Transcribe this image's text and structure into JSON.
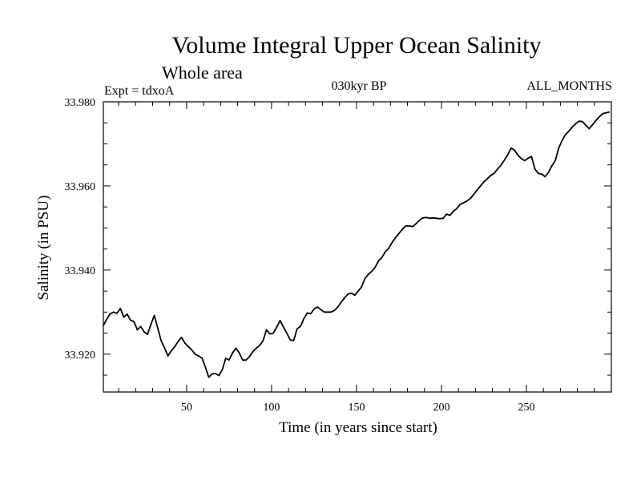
{
  "chart_data": {
    "type": "line",
    "title": "Volume Integral Upper Ocean Salinity",
    "subtitle": "Whole area",
    "annotations": {
      "left": "Expt = tdxoA",
      "center": "030kyr BP",
      "right": "ALL_MONTHS"
    },
    "xlabel": "Time (in years since start)",
    "ylabel": "Salinity (in PSU)",
    "xlim": [
      1,
      300
    ],
    "ylim": [
      33.911,
      33.98
    ],
    "x_ticks": [
      50,
      100,
      150,
      200,
      250
    ],
    "y_ticks": [
      33.92,
      33.94,
      33.96,
      33.98
    ],
    "y_tick_labels": [
      "33.920",
      "33.940",
      "33.960",
      "33.980"
    ],
    "grid": false,
    "series": [
      {
        "color": "#000000",
        "x": [
          1,
          3,
          5,
          7,
          9,
          11,
          13,
          15,
          17,
          19,
          21,
          23,
          25,
          27,
          29,
          31,
          33,
          35,
          37,
          39,
          41,
          43,
          45,
          47,
          49,
          51,
          53,
          55,
          57,
          59,
          61,
          63,
          65,
          67,
          69,
          71,
          73,
          75,
          77,
          79,
          81,
          83,
          85,
          87,
          89,
          91,
          93,
          95,
          97,
          99,
          101,
          103,
          105,
          107,
          109,
          111,
          113,
          115,
          117,
          119,
          121,
          123,
          125,
          127,
          129,
          131,
          133,
          135,
          137,
          139,
          141,
          143,
          145,
          147,
          149,
          151,
          153,
          155,
          157,
          159,
          161,
          163,
          165,
          167,
          169,
          171,
          173,
          175,
          177,
          179,
          181,
          183,
          185,
          187,
          189,
          191,
          193,
          195,
          197,
          199,
          201,
          203,
          205,
          207,
          209,
          211,
          213,
          215,
          217,
          219,
          221,
          223,
          225,
          227,
          229,
          231,
          233,
          235,
          237,
          239,
          241,
          243,
          245,
          247,
          249,
          251,
          253,
          255,
          257,
          259,
          261,
          263,
          265,
          267,
          269,
          271,
          273,
          275,
          277,
          279,
          281,
          283,
          285,
          287,
          289,
          291,
          293,
          295,
          297,
          299
        ],
        "y": [
          33.9268,
          33.9283,
          33.9296,
          33.93,
          33.9297,
          33.9309,
          33.9288,
          33.9295,
          33.9281,
          33.9277,
          33.9258,
          33.9266,
          33.9253,
          33.9247,
          33.9271,
          33.9292,
          33.9262,
          33.9232,
          33.9215,
          33.9196,
          33.9208,
          33.9218,
          33.923,
          33.924,
          33.9226,
          33.9218,
          33.921,
          33.92,
          33.9196,
          33.9191,
          33.917,
          33.9145,
          33.9153,
          33.9154,
          33.9149,
          33.9163,
          33.919,
          33.9186,
          33.9203,
          33.9214,
          33.9203,
          33.9186,
          33.9186,
          33.9194,
          33.9206,
          33.9214,
          33.9221,
          33.9232,
          33.9258,
          33.9248,
          33.925,
          33.9264,
          33.928,
          33.9264,
          33.925,
          33.9234,
          33.9232,
          33.926,
          33.9266,
          33.9284,
          33.9298,
          33.9296,
          33.9307,
          33.9312,
          33.9306,
          33.93,
          33.93,
          33.93,
          33.9304,
          33.9312,
          33.9324,
          33.9334,
          33.9343,
          33.9345,
          33.934,
          33.935,
          33.936,
          33.938,
          33.939,
          33.9397,
          33.9407,
          33.9422,
          33.943,
          33.9444,
          33.9452,
          33.9466,
          33.9477,
          33.9487,
          33.9497,
          33.9505,
          33.9505,
          33.9503,
          33.951,
          33.9518,
          33.9524,
          33.9525,
          33.9523,
          33.9524,
          33.9523,
          33.9522,
          33.9523,
          33.9533,
          33.953,
          33.954,
          33.9546,
          33.9556,
          33.956,
          33.9564,
          33.957,
          33.958,
          33.959,
          33.96,
          33.961,
          33.9617,
          33.9625,
          33.963,
          33.964,
          33.9649,
          33.9661,
          33.9674,
          33.969,
          33.9685,
          33.9673,
          33.9665,
          33.966,
          33.9666,
          33.967,
          33.964,
          33.963,
          33.9628,
          33.9622,
          33.9632,
          33.9648,
          33.966,
          33.969,
          33.9708,
          33.9722,
          33.973,
          33.974,
          33.9748,
          33.9754,
          33.9753,
          33.9744,
          33.9736,
          33.9746,
          33.9756,
          33.9765,
          33.9772,
          33.9774,
          33.9776
        ]
      }
    ]
  }
}
